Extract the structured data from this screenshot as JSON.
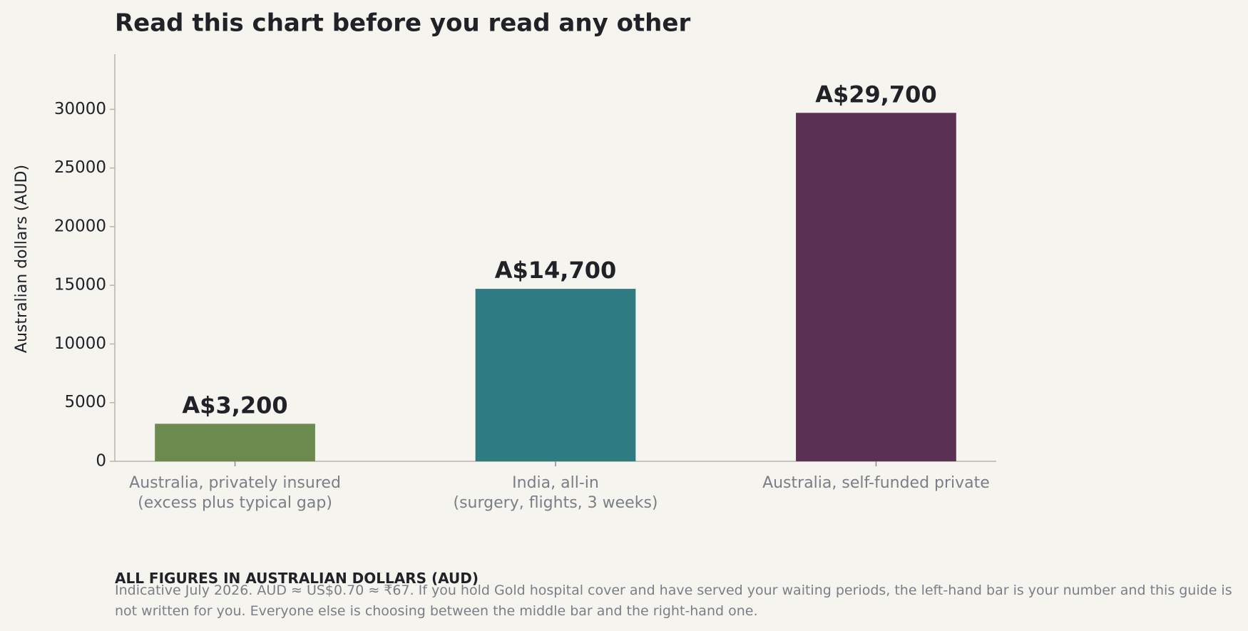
{
  "chart_data": {
    "type": "bar",
    "title": "Read this chart before you read any other",
    "y_label": "Australian dollars (AUD)",
    "categories": [
      "Australia, privately insured\n(excess plus typical gap)",
      "India, all-in\n(surgery, flights, 3 weeks)",
      "Australia, self-funded private"
    ],
    "values": [
      3200,
      14700,
      29700
    ],
    "value_labels": [
      "A$3,200",
      "A$14,700",
      "A$29,700"
    ],
    "colors": [
      "#6b8a4e",
      "#2e7c82",
      "#5a3152"
    ],
    "ylim": [
      0,
      34700
    ],
    "yticks": [
      0,
      5000,
      10000,
      15000,
      20000,
      25000,
      30000
    ],
    "grid": false
  },
  "footer": {
    "heading": "ALL FIGURES IN AUSTRALIAN DOLLARS (AUD)",
    "note": "Indicative July 2026. AUD ≈ US$0.70 ≈ ₹67. If you hold Gold hospital cover and have served your waiting periods, the left-hand bar is your number and this guide is not written for you. Everyone else is choosing between the middle bar and the right-hand one."
  }
}
